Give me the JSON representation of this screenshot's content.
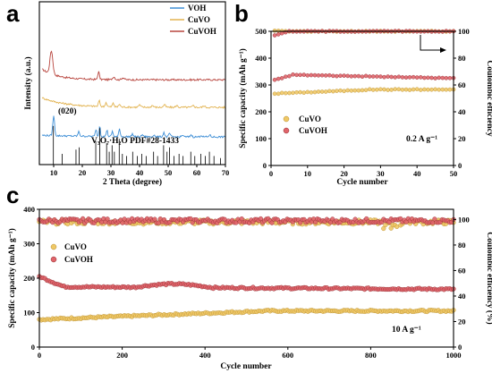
{
  "panels": {
    "a": "a",
    "b": "b",
    "c": "c"
  },
  "colors": {
    "VOH": "#3f8fd6",
    "CuVO": "#e2b350",
    "CuVOH": "#b8453e",
    "CuVO_marker": "#efc866",
    "CuVOH_marker": "#e0646a",
    "ref_lines": "#000000",
    "arrow": "#000000"
  },
  "chart_data": [
    {
      "id": "a",
      "type": "line",
      "xlabel": "2 Theta (degree)",
      "ylabel": "Intensity (a.u.)",
      "xlim": [
        5,
        70
      ],
      "x_ticks": [
        10,
        20,
        30,
        40,
        50,
        60,
        70
      ],
      "legend": {
        "placement": "top-right",
        "entries": [
          "VOH",
          "CuVO",
          "CuVOH"
        ]
      },
      "annotations": {
        "peak": "(020)",
        "reference": "V₃O₇·H₂O PDF#28-1433"
      },
      "series": [
        {
          "name": "CuVOH",
          "color_key": "CuVOH",
          "offset": 2.05,
          "peaks": [
            [
              9.2,
              0.65,
              0.7
            ],
            [
              25.7,
              0.22,
              0.4
            ],
            [
              31.0,
              0.08,
              0.6
            ],
            [
              34.2,
              0.06,
              0.6
            ]
          ],
          "background": {
            "start": 0.35,
            "decay": 0.18,
            "floor": 0.02
          }
        },
        {
          "name": "CuVO",
          "color_key": "CuVO",
          "offset": 1.25,
          "peaks": [
            [
              25.9,
              0.16,
              0.4
            ],
            [
              28.3,
              0.12,
              0.4
            ],
            [
              30.8,
              0.1,
              0.4
            ],
            [
              33.0,
              0.08,
              0.4
            ],
            [
              40.0,
              0.06,
              0.5
            ],
            [
              44.5,
              0.05,
              0.5
            ],
            [
              48.7,
              0.07,
              0.5
            ],
            [
              53.0,
              0.05,
              0.5
            ],
            [
              58.8,
              0.05,
              0.5
            ],
            [
              62.5,
              0.04,
              0.5
            ]
          ],
          "background": {
            "start": 0.3,
            "decay": 0.12,
            "floor": 0.05
          }
        },
        {
          "name": "VOH",
          "color_key": "VOH",
          "offset": 0.45,
          "peaks": [
            [
              10.0,
              0.55,
              0.45
            ],
            [
              18.8,
              0.12,
              0.4
            ],
            [
              24.8,
              0.2,
              0.35
            ],
            [
              26.1,
              0.32,
              0.3
            ],
            [
              28.6,
              0.18,
              0.35
            ],
            [
              30.5,
              0.14,
              0.35
            ],
            [
              33.0,
              0.22,
              0.35
            ],
            [
              37.5,
              0.08,
              0.4
            ],
            [
              41.0,
              0.06,
              0.4
            ],
            [
              45.0,
              0.06,
              0.4
            ],
            [
              48.5,
              0.12,
              0.4
            ],
            [
              50.5,
              0.1,
              0.4
            ],
            [
              55.0,
              0.05,
              0.4
            ],
            [
              58.0,
              0.06,
              0.4
            ],
            [
              61.5,
              0.05,
              0.4
            ],
            [
              64.5,
              0.06,
              0.4
            ]
          ],
          "background": {
            "start": 0.05,
            "decay": 0.05,
            "floor": 0.02
          }
        }
      ],
      "reference_lines": [
        {
          "x": 9.9,
          "h": 0.9
        },
        {
          "x": 13.0,
          "h": 0.25
        },
        {
          "x": 17.8,
          "h": 0.35
        },
        {
          "x": 18.9,
          "h": 0.4
        },
        {
          "x": 24.7,
          "h": 0.55
        },
        {
          "x": 26.1,
          "h": 0.85
        },
        {
          "x": 28.5,
          "h": 0.5
        },
        {
          "x": 29.4,
          "h": 0.3
        },
        {
          "x": 30.4,
          "h": 0.45
        },
        {
          "x": 31.2,
          "h": 0.3
        },
        {
          "x": 32.9,
          "h": 0.6
        },
        {
          "x": 34.0,
          "h": 0.25
        },
        {
          "x": 35.5,
          "h": 0.2
        },
        {
          "x": 37.6,
          "h": 0.3
        },
        {
          "x": 39.2,
          "h": 0.2
        },
        {
          "x": 40.8,
          "h": 0.25
        },
        {
          "x": 42.3,
          "h": 0.2
        },
        {
          "x": 44.9,
          "h": 0.3
        },
        {
          "x": 46.3,
          "h": 0.2
        },
        {
          "x": 48.4,
          "h": 0.45
        },
        {
          "x": 49.6,
          "h": 0.3
        },
        {
          "x": 50.5,
          "h": 0.4
        },
        {
          "x": 52.0,
          "h": 0.2
        },
        {
          "x": 53.8,
          "h": 0.25
        },
        {
          "x": 55.2,
          "h": 0.2
        },
        {
          "x": 57.9,
          "h": 0.3
        },
        {
          "x": 59.3,
          "h": 0.2
        },
        {
          "x": 61.4,
          "h": 0.25
        },
        {
          "x": 63.0,
          "h": 0.2
        },
        {
          "x": 64.4,
          "h": 0.3
        },
        {
          "x": 66.0,
          "h": 0.2
        },
        {
          "x": 68.3,
          "h": 0.15
        }
      ]
    },
    {
      "id": "b",
      "type": "scatter",
      "xlabel": "Cycle number",
      "ylabel": "Specific capacity (mAh g⁻¹)",
      "y2label": "Coulombic efficiency",
      "xlim": [
        0,
        50
      ],
      "ylim": [
        0,
        500
      ],
      "y2lim": [
        0,
        100
      ],
      "x_ticks": [
        0,
        10,
        20,
        30,
        40,
        50
      ],
      "y_ticks": [
        0,
        100,
        200,
        300,
        400,
        500
      ],
      "y2_ticks": [
        0,
        20,
        40,
        60,
        80,
        100
      ],
      "legend": {
        "placement": "bottom-left",
        "entries": [
          "CuVO",
          "CuVOH"
        ]
      },
      "annotation": "0.2 A g⁻¹",
      "series": [
        {
          "name": "CuVO",
          "kind": "capacity",
          "start": 268,
          "end": 283,
          "points": 50
        },
        {
          "name": "CuVOH",
          "kind": "capacity",
          "start": 318,
          "peak": 338,
          "end": 325,
          "points": 50
        },
        {
          "name": "CuVO",
          "kind": "efficiency",
          "start": 100.5,
          "end": 100,
          "points": 50
        },
        {
          "name": "CuVOH",
          "kind": "efficiency",
          "start": 97,
          "end": 100,
          "points": 50
        }
      ]
    },
    {
      "id": "c",
      "type": "scatter",
      "xlabel": "Cycle number",
      "ylabel": "Specific capacity (mAh g⁻¹)",
      "y2label": "Coulombic efficiency (%)",
      "xlim": [
        0,
        1000
      ],
      "ylim": [
        0,
        400
      ],
      "y2lim": [
        0,
        108
      ],
      "x_ticks": [
        0,
        200,
        400,
        600,
        800,
        1000
      ],
      "y_ticks": [
        0,
        100,
        200,
        300,
        400
      ],
      "y2_ticks": [
        0,
        20,
        40,
        60,
        80,
        100
      ],
      "legend": {
        "placement": "left",
        "entries": [
          "CuVO",
          "CuVOH"
        ]
      },
      "annotation": "10 A g⁻¹",
      "series": [
        {
          "name": "CuVO",
          "kind": "capacity",
          "start": 80,
          "end": 105,
          "points": 220
        },
        {
          "name": "CuVOH",
          "kind": "capacity",
          "start": 205,
          "settle": 175,
          "end": 168,
          "points": 220
        },
        {
          "name": "CuVO",
          "kind": "efficiency",
          "mean": 98,
          "points": 220
        },
        {
          "name": "CuVOH",
          "kind": "efficiency",
          "mean": 99,
          "points": 220
        }
      ]
    }
  ]
}
